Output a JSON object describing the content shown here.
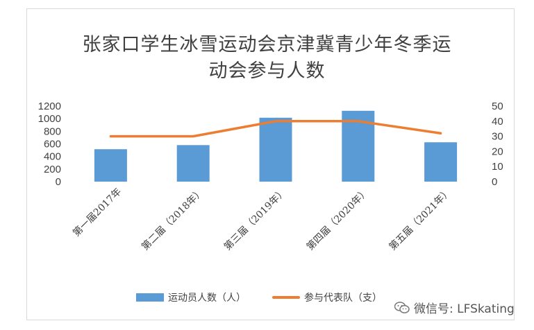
{
  "chart_data": {
    "type": "bar",
    "title_line1": "张家口学生冰雪运动会京津冀青少年冬季运",
    "title_line2": "动会参与人数",
    "categories": [
      "第一届2017年",
      "第二届（2018年）",
      "第三届（2019年）",
      "第四届（2020年）",
      "第五届（2021年）"
    ],
    "series": [
      {
        "name": "运动员人数（人）",
        "type": "bar",
        "axis": "left",
        "color": "#5b9bd5",
        "values": [
          515,
          580,
          1015,
          1125,
          625
        ]
      },
      {
        "name": "参与代表队（支）",
        "type": "line",
        "axis": "right",
        "color": "#ed7d31",
        "values": [
          30,
          30,
          40,
          40,
          32
        ]
      }
    ],
    "y_left": {
      "ylim": [
        0,
        1200
      ],
      "ticks": [
        "0",
        "200",
        "400",
        "600",
        "800",
        "1000",
        "1200"
      ]
    },
    "y_right": {
      "ylim": [
        0,
        50
      ],
      "ticks": [
        "0",
        "10",
        "20",
        "30",
        "40",
        "50"
      ]
    },
    "grid": false,
    "legend_position": "bottom"
  },
  "watermark": {
    "text": "微信号: LFSkating",
    "icon": "wechat-icon"
  }
}
